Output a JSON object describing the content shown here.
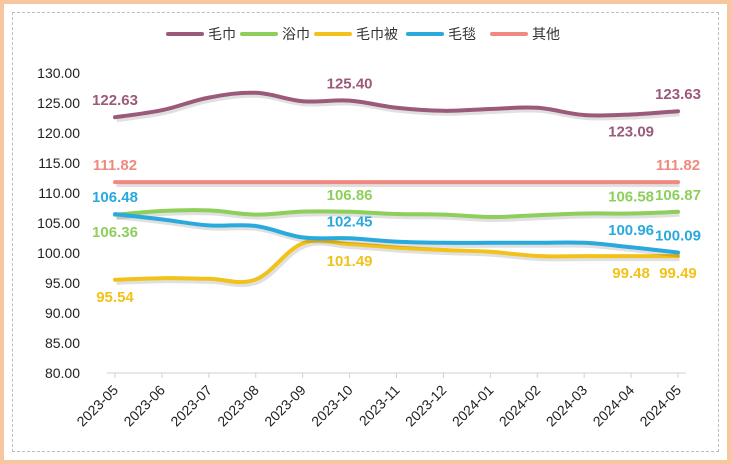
{
  "chart_data": {
    "type": "line",
    "title": "",
    "xlabel": "",
    "ylabel": "",
    "ylim": [
      80,
      130
    ],
    "yticks": [
      "80.00",
      "85.00",
      "90.00",
      "95.00",
      "100.00",
      "105.00",
      "110.00",
      "115.00",
      "120.00",
      "125.00",
      "130.00"
    ],
    "categories": [
      "2023-05",
      "2023-06",
      "2023-07",
      "2023-08",
      "2023-09",
      "2023-10",
      "2023-11",
      "2023-12",
      "2024-01",
      "2024-02",
      "2024-03",
      "2024-04",
      "2024-05"
    ],
    "legend_position": "top",
    "grid": false,
    "series": [
      {
        "name": "毛巾",
        "color": "#9b5a7a",
        "values": [
          122.63,
          123.8,
          125.9,
          126.7,
          125.3,
          125.4,
          124.2,
          123.7,
          124.0,
          124.2,
          123.0,
          123.09,
          123.63
        ],
        "labels": [
          {
            "index": 0,
            "text": "122.63",
            "pos": "above"
          },
          {
            "index": 5,
            "text": "125.40",
            "pos": "above"
          },
          {
            "index": 11,
            "text": "123.09",
            "pos": "below"
          },
          {
            "index": 12,
            "text": "123.63",
            "pos": "above"
          }
        ]
      },
      {
        "name": "浴巾",
        "color": "#8ecf5c",
        "values": [
          106.36,
          107.0,
          107.1,
          106.4,
          106.9,
          106.86,
          106.5,
          106.4,
          106.0,
          106.3,
          106.58,
          106.58,
          106.87
        ],
        "labels": [
          {
            "index": 0,
            "text": "106.36",
            "pos": "below"
          },
          {
            "index": 5,
            "text": "106.86",
            "pos": "above"
          },
          {
            "index": 11,
            "text": "106.58",
            "pos": "above"
          },
          {
            "index": 12,
            "text": "106.87",
            "pos": "above"
          }
        ]
      },
      {
        "name": "毛巾被",
        "color": "#f2c21a",
        "values": [
          95.54,
          95.8,
          95.7,
          95.6,
          101.6,
          101.49,
          100.9,
          100.5,
          100.2,
          99.5,
          99.48,
          99.48,
          99.49
        ],
        "labels": [
          {
            "index": 0,
            "text": "95.54",
            "pos": "below"
          },
          {
            "index": 5,
            "text": "101.49",
            "pos": "below"
          },
          {
            "index": 11,
            "text": "99.48",
            "pos": "below"
          },
          {
            "index": 12,
            "text": "99.49",
            "pos": "below"
          }
        ]
      },
      {
        "name": "毛毯",
        "color": "#2aa9dc",
        "values": [
          106.48,
          105.6,
          104.6,
          104.5,
          102.6,
          102.45,
          101.9,
          101.7,
          101.7,
          101.7,
          101.7,
          100.96,
          100.09
        ],
        "labels": [
          {
            "index": 0,
            "text": "106.48",
            "pos": "above"
          },
          {
            "index": 5,
            "text": "102.45",
            "pos": "above"
          },
          {
            "index": 11,
            "text": "100.96",
            "pos": "above"
          },
          {
            "index": 12,
            "text": "100.09",
            "pos": "above"
          }
        ]
      },
      {
        "name": "其他",
        "color": "#f08a80",
        "values": [
          111.82,
          111.82,
          111.82,
          111.82,
          111.82,
          111.82,
          111.82,
          111.82,
          111.82,
          111.82,
          111.82,
          111.82,
          111.82
        ],
        "labels": [
          {
            "index": 0,
            "text": "111.82",
            "pos": "above"
          },
          {
            "index": 12,
            "text": "111.82",
            "pos": "above"
          }
        ]
      }
    ]
  }
}
